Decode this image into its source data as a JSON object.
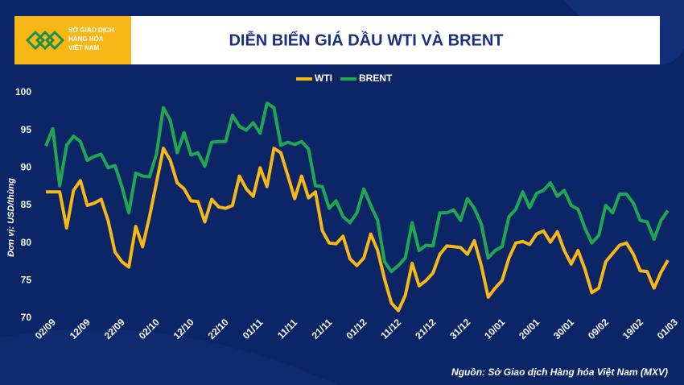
{
  "chart_data": {
    "type": "line",
    "title": "DIỄN BIẾN GIÁ DẦU WTI VÀ BRENT",
    "logo_lines": [
      "SỞ GIAO DỊCH",
      "HÀNG HÓA",
      "VIỆT NAM"
    ],
    "y_label": "Đơn vị: USD/thùng",
    "source": "Nguồn: Sở Giao dịch Hàng hóa Việt Nam (MXV)",
    "categories": [
      "02/09",
      null,
      null,
      null,
      null,
      "12/09",
      null,
      null,
      null,
      null,
      "22/09",
      null,
      null,
      null,
      null,
      "02/10",
      null,
      null,
      null,
      null,
      "12/10",
      null,
      null,
      null,
      null,
      "22/10",
      null,
      null,
      null,
      null,
      "01/11",
      null,
      null,
      null,
      null,
      "11/11",
      null,
      null,
      null,
      null,
      "21/11",
      null,
      null,
      null,
      null,
      "01/12",
      null,
      null,
      null,
      null,
      "11/12",
      null,
      null,
      null,
      null,
      "21/12",
      null,
      null,
      null,
      null,
      "31/12",
      null,
      null,
      null,
      null,
      "10/01",
      null,
      null,
      null,
      null,
      "20/01",
      null,
      null,
      null,
      null,
      "30/01",
      null,
      null,
      null,
      null,
      "09/02",
      null,
      null,
      null,
      null,
      "19/02",
      null,
      null,
      null,
      null,
      "01/03"
    ],
    "series": [
      {
        "name": "WTI",
        "color": "#f7b716",
        "values": [
          86.8,
          86.8,
          86.8,
          82.0,
          87.0,
          88.3,
          85.0,
          85.3,
          85.8,
          83.0,
          78.8,
          77.5,
          76.8,
          82.2,
          79.5,
          83.5,
          88.0,
          92.6,
          91.0,
          88.0,
          87.2,
          85.6,
          85.5,
          82.8,
          85.8,
          84.8,
          84.6,
          85.0,
          88.9,
          87.2,
          86.2,
          90.0,
          87.5,
          92.6,
          92.0,
          89.0,
          85.9,
          88.9,
          86.0,
          86.8,
          81.6,
          80.0,
          79.9,
          80.9,
          77.9,
          77.0,
          78.0,
          81.2,
          79.0,
          75.2,
          72.0,
          71.0,
          73.0,
          77.3,
          74.3,
          75.0,
          76.0,
          78.5,
          79.6,
          79.5,
          79.4,
          78.5,
          80.3,
          77.0,
          72.8,
          74.0,
          75.0,
          78.0,
          80.0,
          80.2,
          79.8,
          81.2,
          81.6,
          80.1,
          81.5,
          79.0,
          77.2,
          79.0,
          76.5,
          73.4,
          74.0,
          77.5,
          78.6,
          79.7,
          80.0,
          78.5,
          76.3,
          76.2,
          74.0,
          76.1,
          77.7
        ]
      },
      {
        "name": "BRENT",
        "color": "#1fa84f",
        "values": [
          92.9,
          95.2,
          87.6,
          93.0,
          94.2,
          93.5,
          91.0,
          91.5,
          91.8,
          90.0,
          90.3,
          87.5,
          84.0,
          89.3,
          88.9,
          88.8,
          91.8,
          98.0,
          96.3,
          92.0,
          94.7,
          91.7,
          92.0,
          90.2,
          93.4,
          93.5,
          93.5,
          97.0,
          95.5,
          95.0,
          96.0,
          94.6,
          98.6,
          98.0,
          93.0,
          93.4,
          93.1,
          93.5,
          92.5,
          87.6,
          87.5,
          84.6,
          85.6,
          83.5,
          82.7,
          84.0,
          87.2,
          85.0,
          83.0,
          77.5,
          76.2,
          77.0,
          78.0,
          82.7,
          79.0,
          79.7,
          79.6,
          84.0,
          84.0,
          84.4,
          83.0,
          85.9,
          84.6,
          82.5,
          78.0,
          79.0,
          79.5,
          83.5,
          84.5,
          86.8,
          84.7,
          86.6,
          87.0,
          88.0,
          86.2,
          87.0,
          85.0,
          84.5,
          82.0,
          80.0,
          81.0,
          85.0,
          84.0,
          86.5,
          86.5,
          85.3,
          83.0,
          82.8,
          80.5,
          83.0,
          84.3
        ]
      }
    ],
    "ylim": [
      70,
      100
    ],
    "yticks": [
      70,
      75,
      80,
      85,
      90,
      95,
      100
    ],
    "grid": false,
    "legend": "top"
  }
}
